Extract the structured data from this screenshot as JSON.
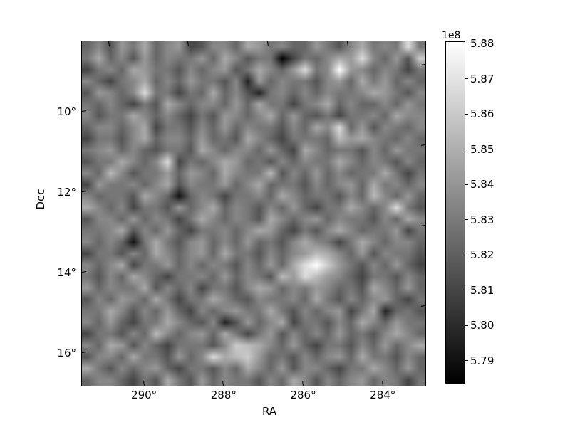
{
  "figure": {
    "background_color": "#ffffff",
    "text_color": "#000000"
  },
  "chart_data": {
    "type": "heatmap",
    "title": "",
    "xlabel": "RA",
    "ylabel": "Dec",
    "grid": false,
    "x_axis": {
      "label": "RA",
      "unit": "degrees",
      "range_deg": [
        291.56,
        282.93
      ],
      "direction": "decreasing left to right",
      "ticks": [
        {
          "value": 290,
          "label": "290°"
        },
        {
          "value": 288,
          "label": "288°"
        },
        {
          "value": 286,
          "label": "286°"
        },
        {
          "value": 284,
          "label": "284°"
        }
      ]
    },
    "y_axis": {
      "label": "Dec",
      "unit": "degrees",
      "range_deg": [
        8.25,
        16.82
      ],
      "direction": "increasing downward",
      "ticks": [
        {
          "value": 10,
          "label": "10°"
        },
        {
          "value": 12,
          "label": "12°"
        },
        {
          "value": 14,
          "label": "14°"
        },
        {
          "value": 16,
          "label": "16°"
        }
      ]
    },
    "colorbar": {
      "offset_text": "1e8",
      "colormap": "gray",
      "color_min": "#000000",
      "color_max": "#ffffff",
      "vmin_1e8": 5.7837,
      "vmax_1e8": 5.8806,
      "ticks": [
        {
          "value_1e8": 5.88,
          "label": "5.88"
        },
        {
          "value_1e8": 5.87,
          "label": "5.87"
        },
        {
          "value_1e8": 5.86,
          "label": "5.86"
        },
        {
          "value_1e8": 5.85,
          "label": "5.85"
        },
        {
          "value_1e8": 5.84,
          "label": "5.84"
        },
        {
          "value_1e8": 5.83,
          "label": "5.83"
        },
        {
          "value_1e8": 5.82,
          "label": "5.82"
        },
        {
          "value_1e8": 5.81,
          "label": "5.81"
        },
        {
          "value_1e8": 5.8,
          "label": "5.80"
        },
        {
          "value_1e8": 5.79,
          "label": "5.79"
        }
      ]
    },
    "grid_size": [
      30,
      30
    ],
    "value_encoding": "hex digit d (0-15) maps to vmin_1e8 + d/15 * (vmax_1e8 - vmin_1e8), rendered with bilinear interpolation",
    "values_hex_rows": [
      "68597a68945886a978669758a787d7",
      "7a6859687796a857704768a9d8695c",
      "4786a9775868957a869d78f9868747",
      "86478a686977582968775896a79686",
      "59868d77476a6852786868778a9758",
      "7686475a8688696a77478a68668697",
      "8577a86864759868a6965747786a88",
      "68868a47758696877586a8d6958768",
      "47758a68869675a8647776b9a87686",
      "7896865775a86886964a8677586977",
      "577a868d4768a967586877a8687586",
      "86b857796986a877b586968677a747",
      "4977868a5877968a677586896a7868",
      "86775a86168747786a8677586b8696",
      "a8684775968a68758696477a868d75",
      "5886968747a86875a86896877586a8",
      "778a58696477868a964758a8677947",
      "868617a758968696758a8747a86886",
      "477586a86896a7758689ba86958775",
      "868a47796868758696adfc97586964",
      "7586a864778696875b9db986477586",
      "96877a586847758a968798675a8696",
      "586986a7477a86587786a758689647",
      "77a8586964868977a75868947a2675",
      "8696477a865825968a477586a86977",
      "477586b86896a74795868696758a86",
      "86a9586477758cba8696477586968a",
      "5886a775968dabc967586896a77586",
      "a7586896477586a8695886477a8696",
      "6886475a7596877586a85868968747"
    ]
  }
}
